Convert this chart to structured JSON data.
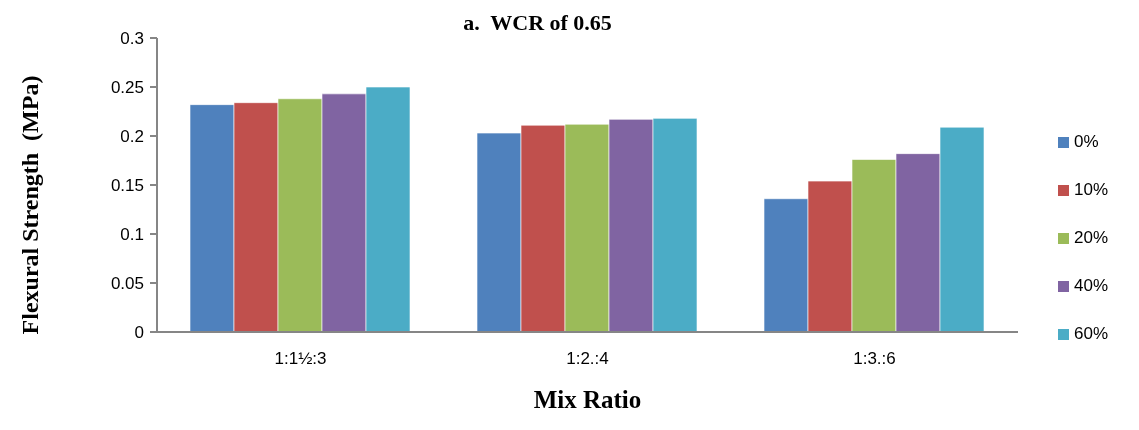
{
  "chart_data": {
    "type": "bar",
    "title": "a.  WCR of 0.65",
    "xlabel": "Mix Ratio",
    "ylabel": "Flexural Strength  (MPa)",
    "categories": [
      "1:1½:3",
      "1:2.:4",
      "1:3.:6"
    ],
    "series": [
      {
        "name": "0%",
        "color": "#4f81bd",
        "values": [
          0.232,
          0.203,
          0.136
        ]
      },
      {
        "name": "10%",
        "color": "#c0504d",
        "values": [
          0.234,
          0.211,
          0.154
        ]
      },
      {
        "name": "20%",
        "color": "#9bbb59",
        "values": [
          0.238,
          0.212,
          0.176
        ]
      },
      {
        "name": "40%",
        "color": "#8064a2",
        "values": [
          0.243,
          0.217,
          0.182
        ]
      },
      {
        "name": "60%",
        "color": "#4bacc6",
        "values": [
          0.25,
          0.218,
          0.209
        ]
      }
    ],
    "ylim": [
      0,
      0.3
    ],
    "yticks": [
      0,
      0.05,
      0.1,
      0.15,
      0.2,
      0.25,
      0.3
    ],
    "legend": "right"
  }
}
